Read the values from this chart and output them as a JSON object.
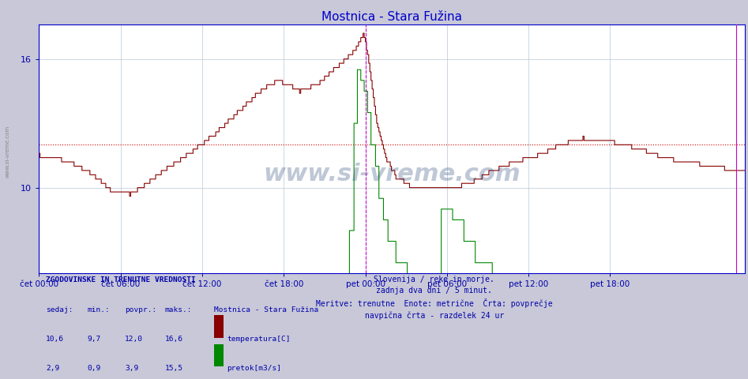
{
  "title": "Mostnica - Stara Fužina",
  "title_color": "#0000cc",
  "bg_color": "#c8c8d8",
  "plot_bg_color": "#ffffff",
  "grid_color": "#b8c8d8",
  "tick_label_color": "#0000aa",
  "temp_color": "#880000",
  "flow_color": "#008800",
  "avg_temp_color": "#cc0000",
  "avg_flow_color": "#008800",
  "vline_midnight_color": "#cc00cc",
  "vline_current_color": "#cc00cc",
  "axis_color": "#0000cc",
  "sidebar_text": "www.si-vreme.com",
  "sidebar_color": "#777777",
  "watermark_text": "www.si-vreme.com",
  "watermark_color": "#1a3a6e",
  "watermark_alpha": 0.28,
  "ylim": [
    6.0,
    17.6
  ],
  "yticks": [
    10,
    16
  ],
  "n_points": 624,
  "xtick_positions": [
    0,
    72,
    144,
    216,
    288,
    360,
    432,
    504
  ],
  "xtick_labels": [
    "čet 00:00",
    "čet 06:00",
    "čet 12:00",
    "čet 18:00",
    "pet 00:00",
    "pet 06:00",
    "pet 12:00",
    "pet 18:00"
  ],
  "avg_temp": 12.0,
  "avg_flow": 3.9,
  "midnight_vline_x": 288,
  "current_vline_x": 615,
  "footer_lines": [
    "Slovenija / reke in morje.",
    "zadnja dva dni / 5 minut.",
    "Meritve: trenutne  Enote: metrične  Črta: povprečje",
    "navpična črta - razdelek 24 ur"
  ],
  "stats_header": "ZGODOVINSKE IN TRENUTNE VREDNOSTI",
  "stats_col_labels": [
    "sedaj:",
    "min.:",
    "povpr.:",
    "maks.:"
  ],
  "legend_station": "Mostnica - Stara Fužina",
  "legend_temp": "temperatura[C]",
  "legend_flow": "pretok[m3/s]",
  "stats_temp_vals": [
    "10,6",
    "9,7",
    "12,0",
    "16,6"
  ],
  "stats_flow_vals": [
    "2,9",
    "0,9",
    "3,9",
    "15,5"
  ]
}
